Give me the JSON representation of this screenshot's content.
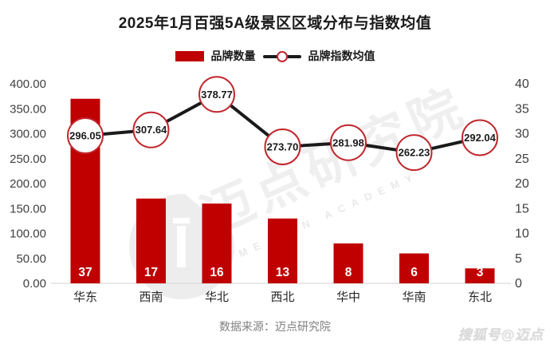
{
  "title": "2025年1月百强5A级景区区域分布与指数均值",
  "legend": {
    "bars": "品牌数量",
    "line": "品牌指数均值"
  },
  "chart_data": {
    "type": "combo-bar-line",
    "categories": [
      "华东",
      "西南",
      "华北",
      "西北",
      "华中",
      "华南",
      "东北"
    ],
    "series": [
      {
        "name": "品牌数量",
        "type": "bar",
        "axis": "right",
        "label_decimals": 0,
        "values": [
          37,
          17,
          16,
          13,
          8,
          6,
          3
        ]
      },
      {
        "name": "品牌指数均值",
        "type": "line",
        "axis": "left",
        "label_decimals": 2,
        "values": [
          296.05,
          307.64,
          378.77,
          273.7,
          281.98,
          262.23,
          292.04
        ]
      }
    ],
    "left_axis": {
      "min": 0,
      "max": 400,
      "step": 50,
      "decimals": 2
    },
    "right_axis": {
      "min": 0,
      "max": 40,
      "step": 5,
      "decimals": 0
    },
    "grid": false,
    "legend_position": "top"
  },
  "watermark": {
    "center_text": "迈点研究院",
    "center_subtext": "MEADIN ACADEMY"
  },
  "footer": {
    "source": "数据来源：迈点研究院",
    "brand": "搜狐号@迈点"
  },
  "colors": {
    "bar": "#c00000",
    "marker_stroke": "#c1272d",
    "line": "#1a1a1a",
    "axis_text": "#404040",
    "bar_label": "#ffffff",
    "category_text": "#262626",
    "marker_label": "#1a1a1a",
    "axis_line": "#d9d9d9",
    "source_text": "#7f7f7f",
    "brand_text": "#d9d9d9"
  }
}
